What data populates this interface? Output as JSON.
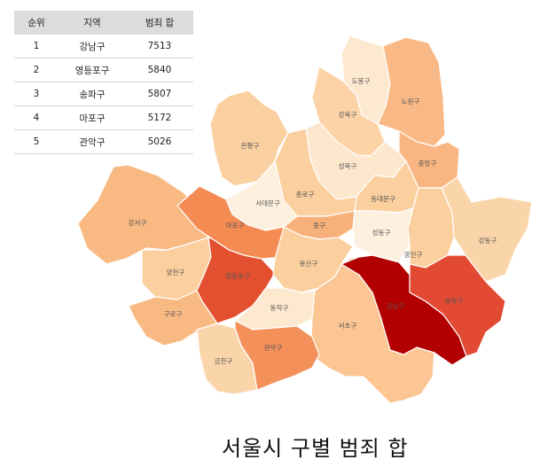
{
  "table": {
    "headers": {
      "rank": "순위",
      "area": "지역",
      "count": "범죄 합"
    },
    "rows": [
      {
        "rank": "1",
        "area": "강남구",
        "count": "7513"
      },
      {
        "rank": "2",
        "area": "영등포구",
        "count": "5840"
      },
      {
        "rank": "3",
        "area": "송파구",
        "count": "5807"
      },
      {
        "rank": "4",
        "area": "마포구",
        "count": "5172"
      },
      {
        "rank": "5",
        "area": "관악구",
        "count": "5026"
      }
    ]
  },
  "map": {
    "title": "서울시 구별 범죄 합",
    "districts": [
      {
        "id": "dobong",
        "name": "도봉구",
        "color": "#fde8d0"
      },
      {
        "id": "nowon",
        "name": "노원구",
        "color": "#f9b987"
      },
      {
        "id": "gangbuk",
        "name": "강북구",
        "color": "#fbd3a7"
      },
      {
        "id": "eunpyeong",
        "name": "은평구",
        "color": "#fbd0a1"
      },
      {
        "id": "seongbuk",
        "name": "성북구",
        "color": "#fde7cd"
      },
      {
        "id": "jungnang",
        "name": "중랑구",
        "color": "#f9b682"
      },
      {
        "id": "jongno",
        "name": "종로구",
        "color": "#fbcf9e"
      },
      {
        "id": "dongdaemun",
        "name": "동대문구",
        "color": "#fbcf9e"
      },
      {
        "id": "seodaemun",
        "name": "서대문구",
        "color": "#fef0de"
      },
      {
        "id": "gangseo",
        "name": "강서구",
        "color": "#f9b983"
      },
      {
        "id": "mapo",
        "name": "마포구",
        "color": "#f48b53"
      },
      {
        "id": "junggu",
        "name": "중구",
        "color": "#f8b07a"
      },
      {
        "id": "seongdong",
        "name": "성동구",
        "color": "#fef0de"
      },
      {
        "id": "gwangjin",
        "name": "광진구",
        "color": "#fbcf9e"
      },
      {
        "id": "gangdong",
        "name": "강동구",
        "color": "#fbd5aa"
      },
      {
        "id": "yangcheon",
        "name": "양천구",
        "color": "#fbcf9e"
      },
      {
        "id": "yeongdeungpo",
        "name": "영등포구",
        "color": "#e2502f"
      },
      {
        "id": "yongsan",
        "name": "용산구",
        "color": "#fbcf9e"
      },
      {
        "id": "guro",
        "name": "구로구",
        "color": "#f9b983"
      },
      {
        "id": "dongjak",
        "name": "동작구",
        "color": "#fde8d0"
      },
      {
        "id": "seocho",
        "name": "서초구",
        "color": "#fbc694"
      },
      {
        "id": "gangnam",
        "name": "강남구",
        "color": "#b20000"
      },
      {
        "id": "songpa",
        "name": "송파구",
        "color": "#e34a33"
      },
      {
        "id": "geumcheon",
        "name": "금천구",
        "color": "#fbd5aa"
      },
      {
        "id": "gwanak",
        "name": "관악구",
        "color": "#f4905a"
      }
    ]
  }
}
